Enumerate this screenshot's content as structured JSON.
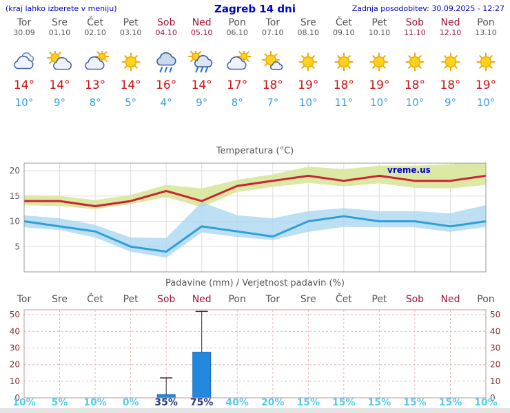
{
  "header": {
    "left_note": "(kraj lahko izberete v meniju)",
    "title": "Zagreb 14 dni",
    "updated": "Zadnja posodobitev: 30.09.2025 - 12:27"
  },
  "colors": {
    "link_blue": "#0000cc",
    "weekday": "#555555",
    "weekend": "#a01535",
    "temp_high": "#cc1111",
    "temp_low": "#3aa0dd",
    "bar_fill": "#2288dd",
    "bar_stroke": "#1a6bb0",
    "prob_light": "#55ccee",
    "prob_dark": "#22388f",
    "grid_gray": "#dddddd",
    "grid_red": "#e8b6b6",
    "axis_gray": "#555555",
    "axis_red": "#883333",
    "frame_gray": "#999999",
    "frame_red": "#bb9999",
    "whisker": "#333333"
  },
  "forecast": {
    "days": [
      {
        "name": "Tor",
        "date": "30.09",
        "weekend": false,
        "icon": "cloudy",
        "high": "14°",
        "low": "10°"
      },
      {
        "name": "Sre",
        "date": "01.10",
        "weekend": false,
        "icon": "partly-cloudy",
        "high": "14°",
        "low": "9°"
      },
      {
        "name": "Čet",
        "date": "02.10",
        "weekend": false,
        "icon": "mostly-cloudy",
        "high": "13°",
        "low": "8°"
      },
      {
        "name": "Pet",
        "date": "03.10",
        "weekend": false,
        "icon": "sunny",
        "high": "14°",
        "low": "5°"
      },
      {
        "name": "Sob",
        "date": "04.10",
        "weekend": true,
        "icon": "rain",
        "high": "16°",
        "low": "4°"
      },
      {
        "name": "Ned",
        "date": "05.10",
        "weekend": true,
        "icon": "rain-showers",
        "high": "14°",
        "low": "9°"
      },
      {
        "name": "Pon",
        "date": "06.10",
        "weekend": false,
        "icon": "mostly-cloudy",
        "high": "17°",
        "low": "8°"
      },
      {
        "name": "Tor",
        "date": "07.10",
        "weekend": false,
        "icon": "mostly-sunny",
        "high": "18°",
        "low": "7°"
      },
      {
        "name": "Sre",
        "date": "08.10",
        "weekend": false,
        "icon": "sunny",
        "high": "19°",
        "low": "10°"
      },
      {
        "name": "Čet",
        "date": "09.10",
        "weekend": false,
        "icon": "sunny",
        "high": "18°",
        "low": "11°"
      },
      {
        "name": "Pet",
        "date": "10.10",
        "weekend": false,
        "icon": "sunny",
        "high": "19°",
        "low": "10°"
      },
      {
        "name": "Sob",
        "date": "11.10",
        "weekend": true,
        "icon": "sunny",
        "high": "18°",
        "low": "10°"
      },
      {
        "name": "Ned",
        "date": "12.10",
        "weekend": true,
        "icon": "sunny",
        "high": "18°",
        "low": "9°"
      },
      {
        "name": "Pon",
        "date": "13.10",
        "weekend": false,
        "icon": "sunny",
        "high": "19°",
        "low": "10°"
      }
    ]
  },
  "chart_data": [
    {
      "type": "line",
      "title": "Temperatura (°C)",
      "categories": [
        "Tor",
        "Sre",
        "Čet",
        "Pet",
        "Sob",
        "Ned",
        "Pon",
        "Tor",
        "Sre",
        "Čet",
        "Pet",
        "Sob",
        "Ned",
        "Pon"
      ],
      "ylim": [
        0,
        21.5
      ],
      "yticks": [
        5,
        10,
        15,
        20
      ],
      "watermark": "vreme.us",
      "series": [
        {
          "name": "max_temp",
          "color": "#cc2233",
          "values": [
            14,
            14,
            13,
            14,
            16,
            14,
            17,
            18,
            19,
            18,
            19,
            18,
            18,
            19
          ]
        },
        {
          "name": "min_temp",
          "color": "#2d9fd8",
          "values": [
            10,
            9,
            8,
            5,
            4,
            9,
            8,
            7,
            10,
            11,
            10,
            10,
            9,
            10
          ]
        }
      ],
      "bands": [
        {
          "name": "max_range",
          "color": "#dce9a4",
          "upper": [
            15.2,
            15.0,
            14.2,
            15.2,
            17.2,
            16.5,
            18.2,
            19.3,
            20.8,
            20.3,
            21.0,
            21.0,
            21.3,
            22.3
          ],
          "lower": [
            13.2,
            13.0,
            12.4,
            13.4,
            14.8,
            12.8,
            15.8,
            16.8,
            17.6,
            16.9,
            17.5,
            16.6,
            16.5,
            17.2
          ]
        },
        {
          "name": "min_range",
          "color": "#a9d6ef",
          "upper": [
            11.2,
            10.6,
            9.3,
            6.8,
            6.7,
            13.8,
            11.2,
            10.6,
            12.0,
            12.6,
            12.0,
            12.0,
            11.6,
            13.2
          ],
          "lower": [
            8.8,
            8.3,
            6.8,
            4.0,
            2.8,
            7.8,
            6.9,
            6.3,
            7.9,
            8.9,
            8.8,
            8.8,
            7.9,
            8.9
          ]
        }
      ]
    },
    {
      "type": "bar",
      "title": "Padavine (mm) / Verjetnost padavin (%)",
      "categories": [
        "Tor",
        "Sre",
        "Čet",
        "Pet",
        "Sob",
        "Ned",
        "Pon",
        "Tor",
        "Sre",
        "Čet",
        "Pet",
        "Sob",
        "Ned",
        "Pon"
      ],
      "ylim": [
        0,
        53
      ],
      "yticks": [
        0,
        10,
        20,
        30,
        40,
        50
      ],
      "values": [
        0,
        0,
        0,
        0,
        2,
        27.5,
        0,
        0,
        0,
        0,
        0,
        0,
        0,
        0
      ],
      "whiskers": [
        0,
        0,
        0,
        0,
        12,
        52,
        0,
        0,
        0,
        0,
        0,
        0,
        0,
        0
      ],
      "probabilities": [
        "10%",
        "5%",
        "10%",
        "0%",
        "35%",
        "75%",
        "40%",
        "20%",
        "15%",
        "15%",
        "15%",
        "15%",
        "15%",
        "10%"
      ],
      "prob_dark": [
        false,
        false,
        false,
        false,
        true,
        true,
        false,
        false,
        false,
        false,
        false,
        false,
        false,
        false
      ]
    }
  ]
}
